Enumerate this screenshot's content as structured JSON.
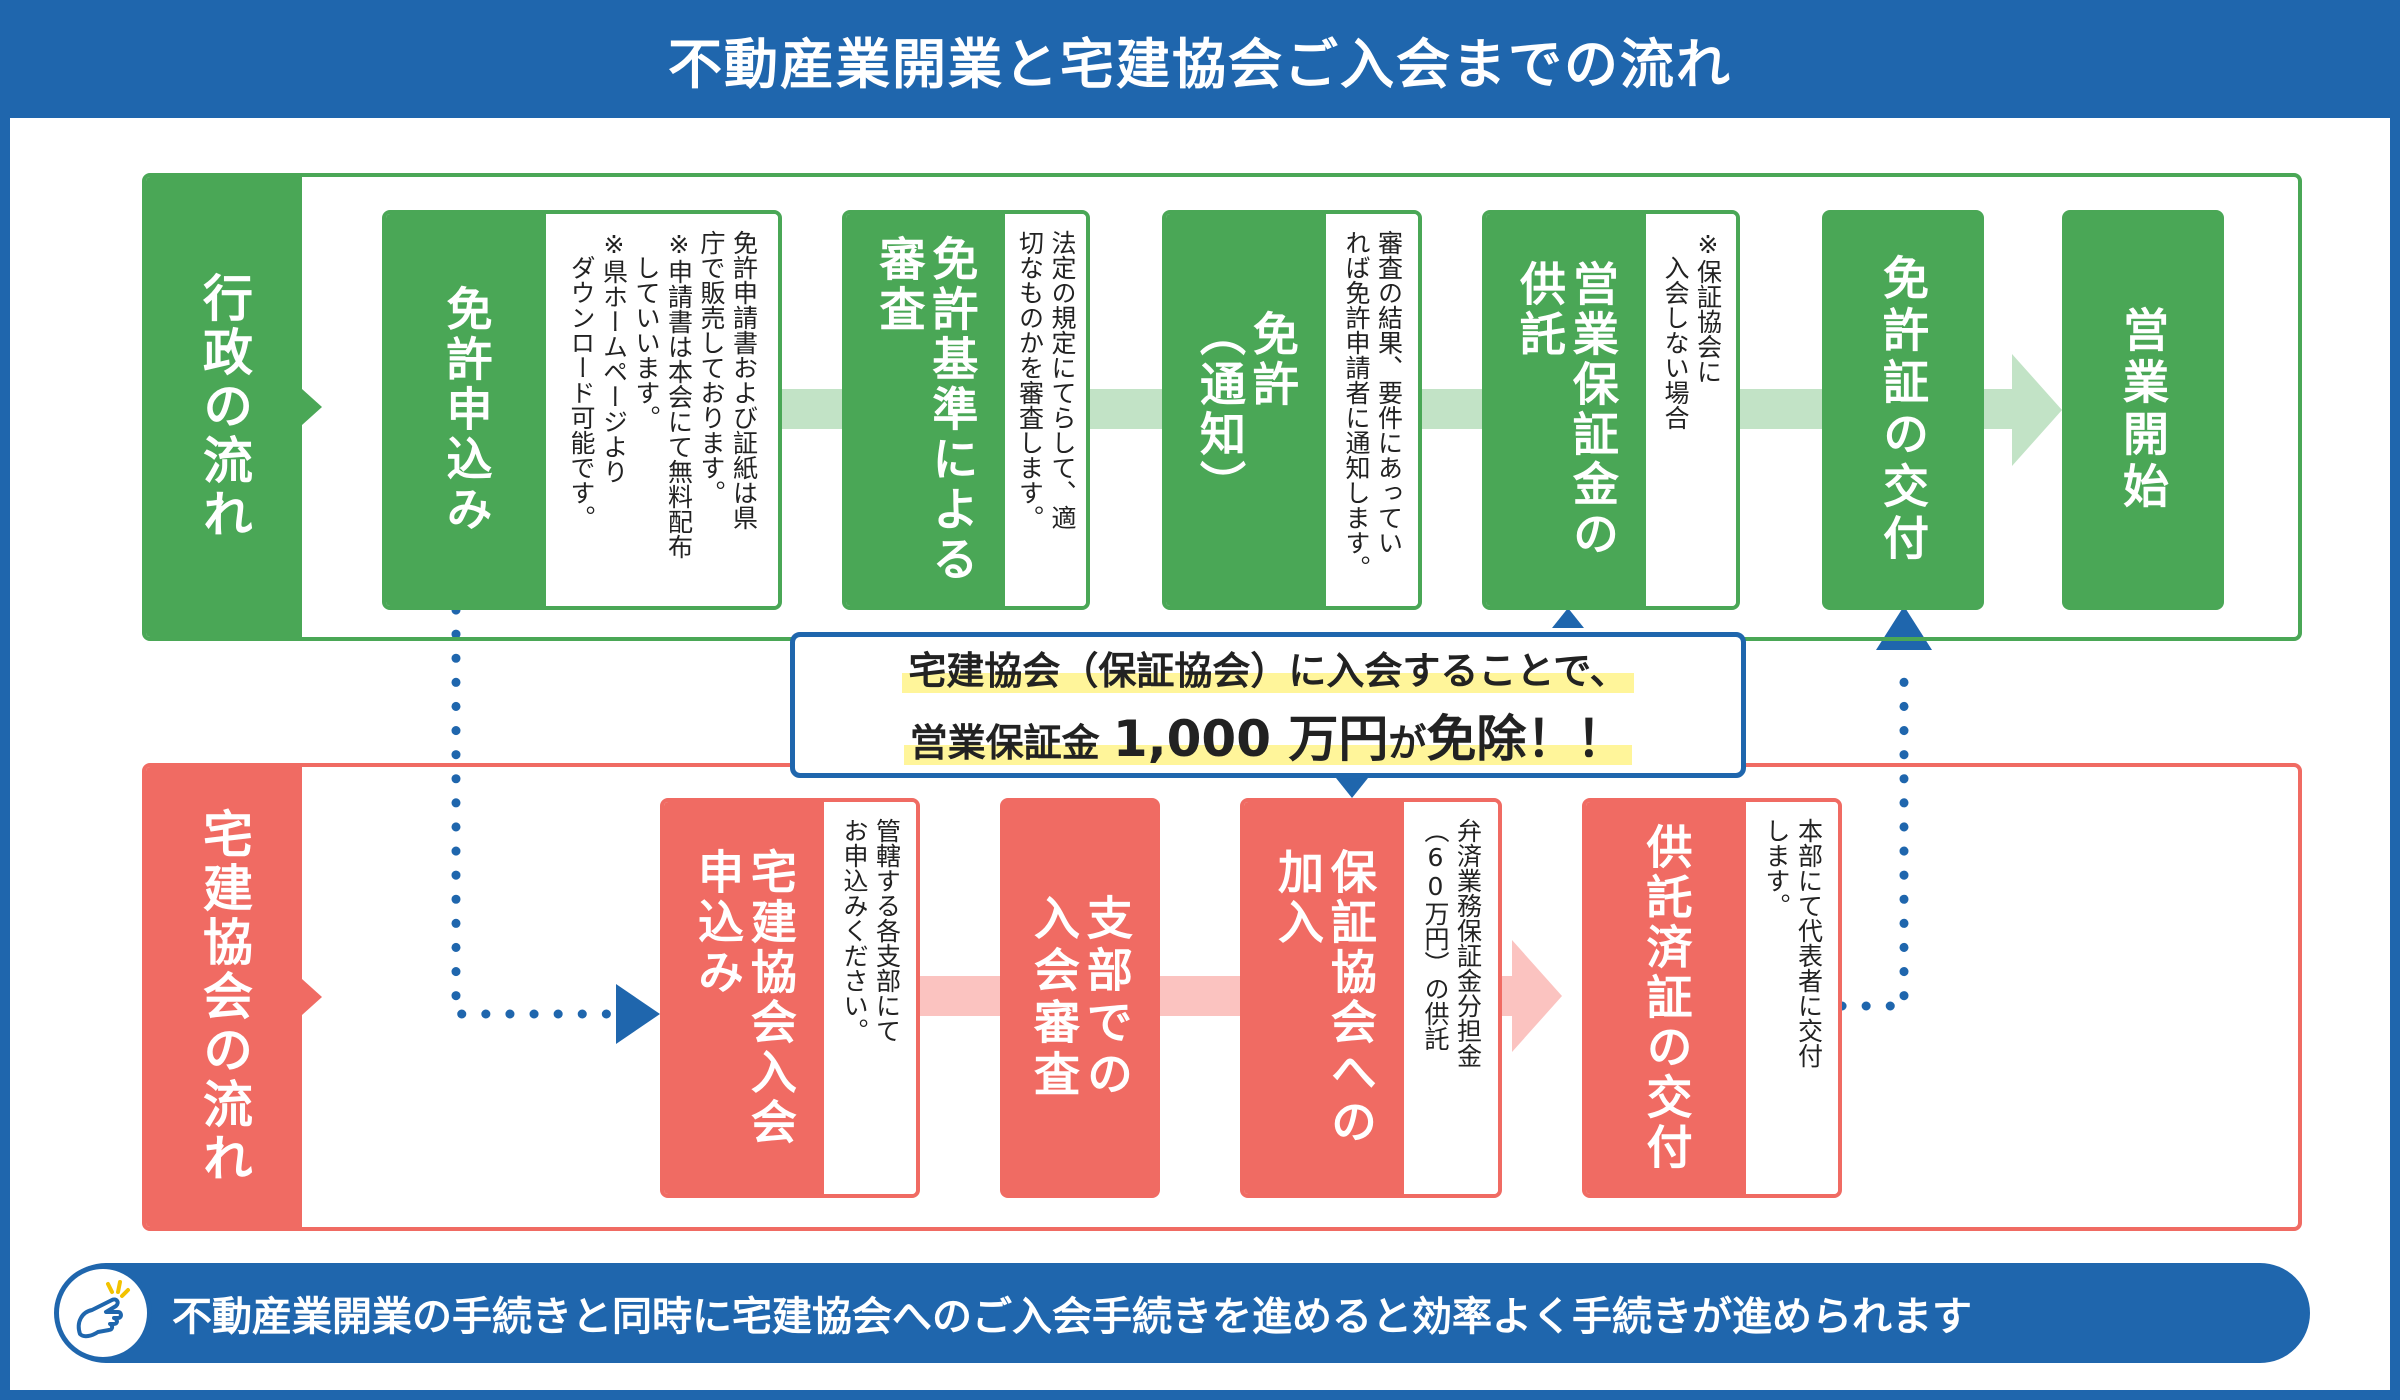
{
  "title": "不動産業開業と宅建協会ご入会までの流れ",
  "colors": {
    "blue": "#1f66ad",
    "green": "#4aa756",
    "red": "#f06b63",
    "light_green": "#c2e3c6",
    "light_red": "#fbc3c0"
  },
  "gov": {
    "label": "行政の流れ",
    "steps": [
      {
        "head": "免許申込み",
        "note": [
          "免許申請書および証紙は県",
          "庁で販売しております。",
          "※申請書は本会にて無料配布",
          "　していいます。",
          "※県ホームページより",
          "　ダウンロード可能です。"
        ]
      },
      {
        "head": [
          "免許基準による",
          "審査"
        ],
        "note": [
          "法定の規定にてらして、適",
          "切なものかを審査します。"
        ]
      },
      {
        "head": [
          "免許",
          "（通知）"
        ],
        "note": [
          "審査の結果、要件にあってい",
          "れば免許申請者に通知します。"
        ]
      },
      {
        "head": [
          "営業保証金の",
          "供託"
        ],
        "note": [
          "※保証協会に",
          "　入会しない場合"
        ]
      },
      {
        "head": "免許証の交付"
      },
      {
        "head": "営業開始"
      }
    ]
  },
  "assoc": {
    "label": "宅建協会の流れ",
    "steps": [
      {
        "head": [
          "宅建協会入会",
          "申込み"
        ],
        "note": [
          "管轄する各支部にて",
          "お申込みください。"
        ]
      },
      {
        "head": [
          "支部での",
          "入会審査"
        ]
      },
      {
        "head": [
          "保証協会への",
          "加入"
        ],
        "note": [
          "弁済業務保証金分担金",
          "（60万円）の供託"
        ]
      },
      {
        "head": "供託済証の交付",
        "note": [
          "本部にて代表者に交付",
          "します。"
        ]
      }
    ]
  },
  "callout": {
    "line1": "宅建協会（保証協会）に入会することで、",
    "line2_pre": "営業保証金",
    "line2_amount": "1,000 万円",
    "line2_mid": "が",
    "line2_post": "免除！！"
  },
  "banner": "不動産業開業の手続きと同時に宅建協会へのご入会手続きを進めると効率よく手続きが進められます"
}
